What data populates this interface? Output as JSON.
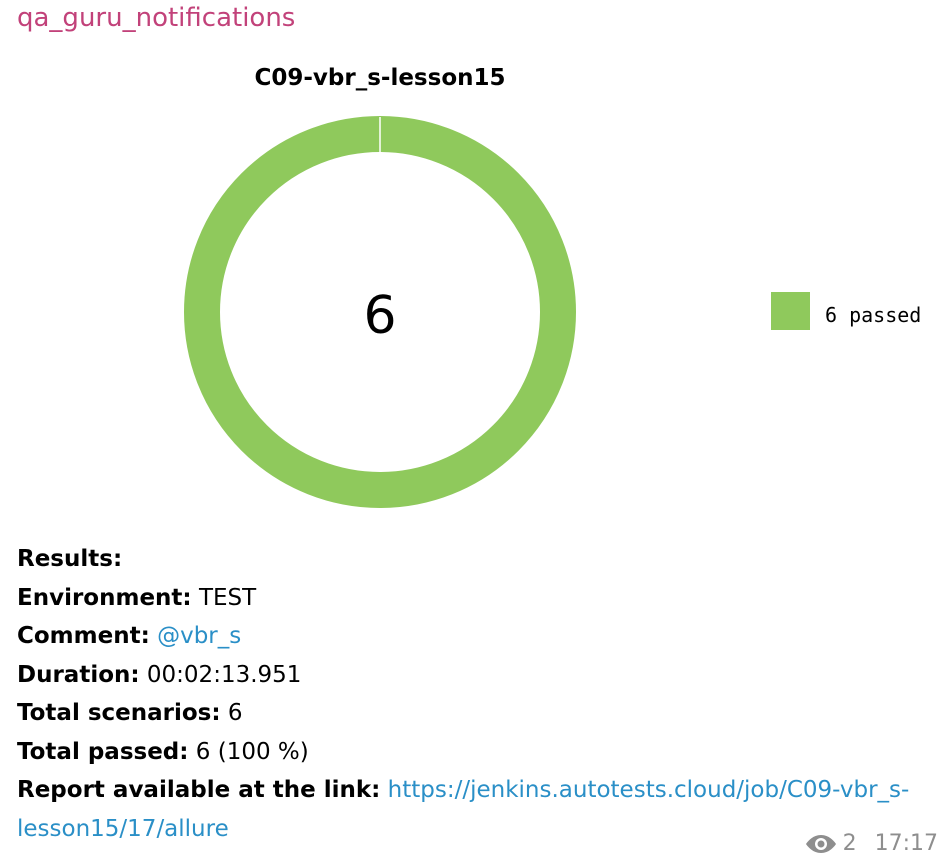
{
  "message": {
    "sender": "qa_guru_notifications",
    "views": "2",
    "time": "17:17",
    "colors": {
      "sender": "#c2427a",
      "link": "#2a8fc7",
      "meta": "#8e8e8e",
      "passed": "#8fc95c"
    },
    "icons": {
      "views": "eye-icon"
    }
  },
  "chart_data": {
    "type": "pie",
    "title": "C09-vbr_s-lesson15",
    "center_label": "6",
    "slices": [
      {
        "name": "passed",
        "value": 6,
        "color": "#8fc95c"
      }
    ],
    "legend": {
      "placement": "right",
      "entries": [
        "6 passed"
      ]
    }
  },
  "results": {
    "heading": "Results:",
    "environment": {
      "label": "Environment:",
      "value": "TEST"
    },
    "comment": {
      "label": "Comment:",
      "value": "@vbr_s"
    },
    "duration": {
      "label": "Duration:",
      "value": "00:02:13.951"
    },
    "total_scenarios": {
      "label": "Total scenarios:",
      "value": "6"
    },
    "total_passed": {
      "label": "Total passed:",
      "value": "6 (100 %)"
    },
    "report": {
      "label": "Report available at the link:",
      "url": "https://jenkins.autotests.cloud/job/C09-vbr_s-lesson15/17/allure"
    }
  }
}
